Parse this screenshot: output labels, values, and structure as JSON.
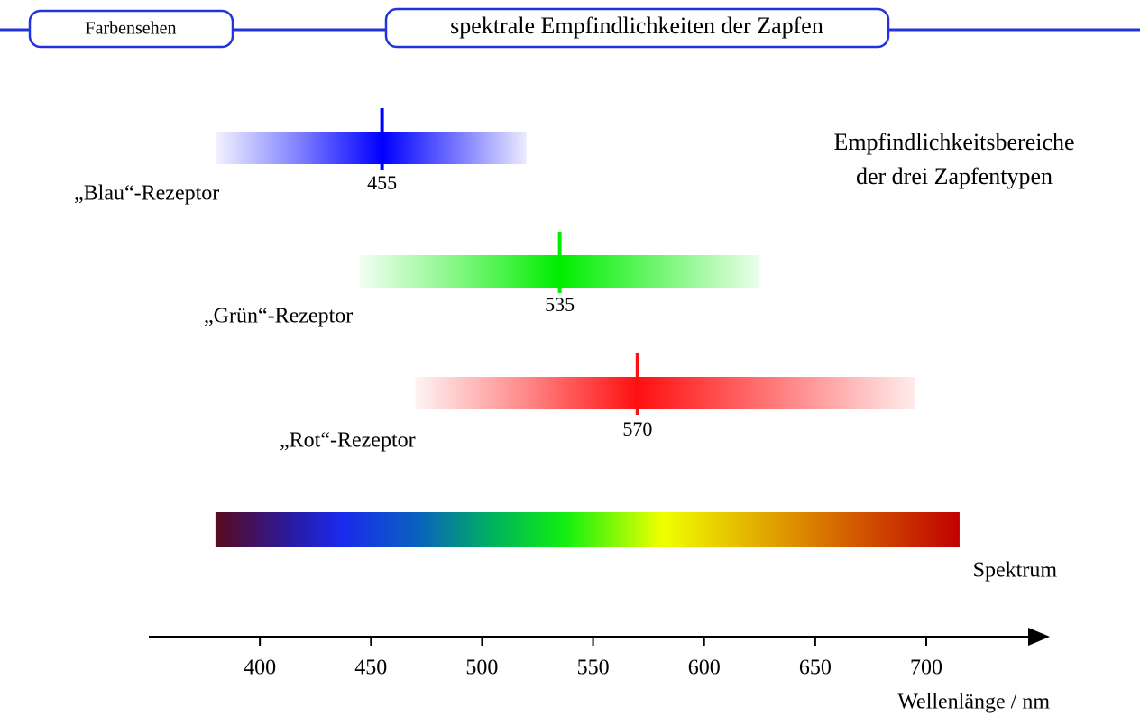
{
  "header": {
    "section": "Farbensehen",
    "title": "spektrale Empfindlichkeiten der Zapfen"
  },
  "legend": [
    "Empfindlichkeitsbereiche",
    "der drei Zapfentypen"
  ],
  "receptors": [
    {
      "label": "„Blau“-Rezeptor",
      "peak": 455,
      "range": [
        380,
        520
      ],
      "color": "#0000ff"
    },
    {
      "label": "„Grün“-Rezeptor",
      "peak": 535,
      "range": [
        445,
        625
      ],
      "color": "#00ee00"
    },
    {
      "label": "„Rot“-Rezeptor",
      "peak": 570,
      "range": [
        470,
        695
      ],
      "color": "#ff1010"
    }
  ],
  "spectrum": {
    "label": "Spektrum",
    "range": [
      380,
      715
    ]
  },
  "axis": {
    "label": "Wellenlänge / nm",
    "xlim": [
      350,
      754
    ],
    "xticks": [
      400,
      450,
      500,
      550,
      600,
      650,
      700
    ]
  }
}
